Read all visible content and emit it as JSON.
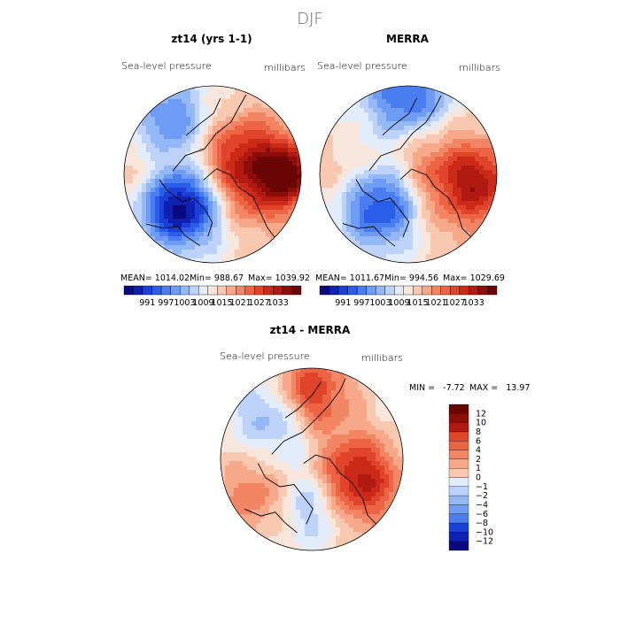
{
  "chart_data": {
    "title": "DJF",
    "panels": [
      {
        "type": "heatmap",
        "projection": "north-polar-stereographic",
        "title": "zt14 (yrs 1-1)",
        "variable": "Sea-level pressure",
        "units": "millibars",
        "stats": {
          "mean": "MEAN= 1014.02",
          "min": "Min= 988.67",
          "max": "Max= 1039.92"
        },
        "colorbar_ticks": [
          "991",
          "997",
          "1003",
          "1009",
          "1015",
          "1021",
          "1027",
          "1033"
        ],
        "levels": [
          985,
          988,
          991,
          994,
          997,
          1000,
          1003,
          1006,
          1009,
          1012,
          1015,
          1018,
          1021,
          1024,
          1027,
          1030,
          1033,
          1036,
          1039
        ]
      },
      {
        "type": "heatmap",
        "projection": "north-polar-stereographic",
        "title": "MERRA",
        "variable": "Sea-level pressure",
        "units": "millibars",
        "stats": {
          "mean": "MEAN= 1011.67",
          "min": "Min= 994.56",
          "max": "Max= 1029.69"
        },
        "colorbar_ticks": [
          "991",
          "997",
          "1003",
          "1009",
          "1015",
          "1021",
          "1027",
          "1033"
        ],
        "levels": [
          985,
          988,
          991,
          994,
          997,
          1000,
          1003,
          1006,
          1009,
          1012,
          1015,
          1018,
          1021,
          1024,
          1027,
          1030,
          1033,
          1036,
          1039
        ]
      },
      {
        "type": "heatmap",
        "projection": "north-polar-stereographic",
        "title": "zt14 - MERRA",
        "variable": "Sea-level pressure",
        "units": "millibars",
        "stats": {
          "min": "MIN =   -7.72",
          "max": "MAX =   13.97"
        },
        "colorbar_ticks": [
          "12",
          "10",
          "8",
          "6",
          "4",
          "2",
          "1",
          "0",
          "−1",
          "−2",
          "−4",
          "−6",
          "−8",
          "−10",
          "−12"
        ]
      }
    ]
  },
  "palette": {
    "blue_red": [
      "#0a0a80",
      "#1020b0",
      "#1a40d8",
      "#2a5ee8",
      "#4a7ef0",
      "#6e9cf4",
      "#94b8f6",
      "#bcd2f8",
      "#e2ecfa",
      "#f8e6dc",
      "#f8c8b0",
      "#f6a888",
      "#f28664",
      "#ec6444",
      "#e0442a",
      "#cc2a18",
      "#b01a10",
      "#8c0e08",
      "#6a0606"
    ],
    "coast": "#000000",
    "circle_stroke": "#000000"
  }
}
